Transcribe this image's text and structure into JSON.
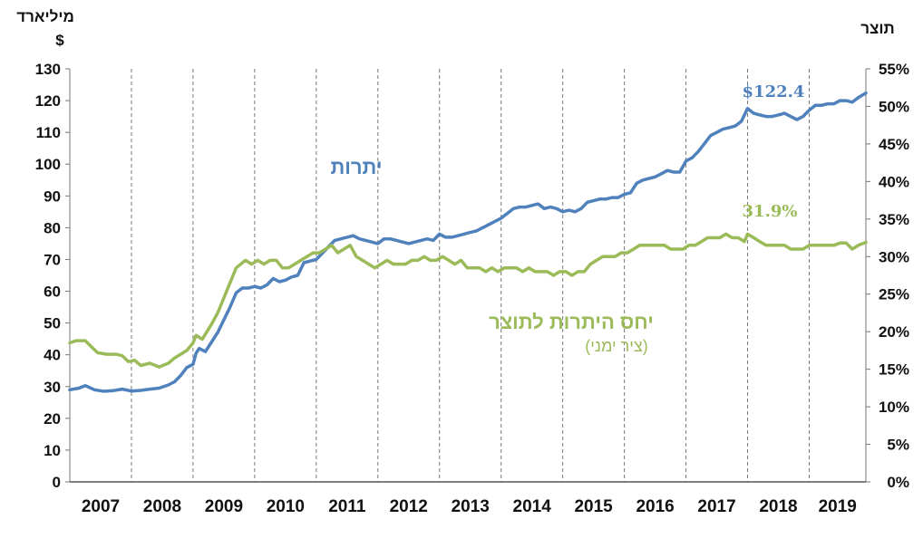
{
  "chart_data": {
    "type": "line",
    "left_axis": {
      "unit_line1": "מיליארד",
      "unit_line2": "$",
      "ylim": [
        0,
        130
      ],
      "ticks": [
        "0",
        "10",
        "20",
        "30",
        "40",
        "50",
        "60",
        "70",
        "80",
        "90",
        "100",
        "110",
        "120",
        "130"
      ]
    },
    "right_axis": {
      "unit": "תוצר",
      "ylim": [
        0,
        55
      ],
      "ticks": [
        "0%",
        "5%",
        "10%",
        "15%",
        "20%",
        "25%",
        "30%",
        "35%",
        "40%",
        "45%",
        "50%",
        "55%"
      ]
    },
    "x_axis": {
      "years": [
        "2007",
        "2008",
        "2009",
        "2010",
        "2011",
        "2012",
        "2013",
        "2014",
        "2015",
        "2016",
        "2017",
        "2018",
        "2019"
      ],
      "xlim": [
        2007.0,
        2019.92
      ]
    },
    "grid": "vertical dashed at year boundaries",
    "series": [
      {
        "name": "יתרות",
        "axis": "left",
        "color": "#4f81bd",
        "end_label": "$122.4",
        "points": [
          [
            2007.0,
            29
          ],
          [
            2007.15,
            29.5
          ],
          [
            2007.25,
            30.3
          ],
          [
            2007.4,
            29
          ],
          [
            2007.55,
            28.5
          ],
          [
            2007.7,
            28.7
          ],
          [
            2007.85,
            29.2
          ],
          [
            2008.0,
            28.6
          ],
          [
            2008.15,
            28.8
          ],
          [
            2008.3,
            29.2
          ],
          [
            2008.45,
            29.5
          ],
          [
            2008.6,
            30.5
          ],
          [
            2008.7,
            31.5
          ],
          [
            2008.8,
            33.5
          ],
          [
            2008.9,
            36
          ],
          [
            2009.0,
            37
          ],
          [
            2009.05,
            40.5
          ],
          [
            2009.1,
            42
          ],
          [
            2009.2,
            41
          ],
          [
            2009.3,
            44
          ],
          [
            2009.4,
            47
          ],
          [
            2009.5,
            51
          ],
          [
            2009.6,
            55
          ],
          [
            2009.7,
            59.5
          ],
          [
            2009.8,
            61
          ],
          [
            2009.9,
            61
          ],
          [
            2010.0,
            61.5
          ],
          [
            2010.1,
            61
          ],
          [
            2010.2,
            62
          ],
          [
            2010.3,
            64
          ],
          [
            2010.4,
            63
          ],
          [
            2010.5,
            63.5
          ],
          [
            2010.6,
            64.5
          ],
          [
            2010.7,
            65
          ],
          [
            2010.8,
            69
          ],
          [
            2010.9,
            69.5
          ],
          [
            2011.0,
            70
          ],
          [
            2011.1,
            72
          ],
          [
            2011.2,
            74
          ],
          [
            2011.3,
            76
          ],
          [
            2011.4,
            76.5
          ],
          [
            2011.5,
            77
          ],
          [
            2011.6,
            77.5
          ],
          [
            2011.7,
            76.5
          ],
          [
            2011.8,
            76
          ],
          [
            2011.9,
            75.5
          ],
          [
            2012.0,
            75
          ],
          [
            2012.1,
            76.5
          ],
          [
            2012.2,
            76.5
          ],
          [
            2012.3,
            76
          ],
          [
            2012.4,
            75.5
          ],
          [
            2012.5,
            75
          ],
          [
            2012.6,
            75.5
          ],
          [
            2012.7,
            76
          ],
          [
            2012.8,
            76.5
          ],
          [
            2012.9,
            76
          ],
          [
            2013.0,
            78
          ],
          [
            2013.1,
            77
          ],
          [
            2013.2,
            77
          ],
          [
            2013.3,
            77.5
          ],
          [
            2013.4,
            78
          ],
          [
            2013.5,
            78.5
          ],
          [
            2013.6,
            79
          ],
          [
            2013.7,
            80
          ],
          [
            2013.8,
            81
          ],
          [
            2013.9,
            82
          ],
          [
            2014.0,
            83
          ],
          [
            2014.1,
            84.5
          ],
          [
            2014.2,
            86
          ],
          [
            2014.3,
            86.5
          ],
          [
            2014.4,
            86.5
          ],
          [
            2014.5,
            87
          ],
          [
            2014.6,
            87.5
          ],
          [
            2014.7,
            86
          ],
          [
            2014.8,
            86.5
          ],
          [
            2014.9,
            86
          ],
          [
            2015.0,
            85
          ],
          [
            2015.1,
            85.5
          ],
          [
            2015.2,
            85
          ],
          [
            2015.3,
            86
          ],
          [
            2015.4,
            88
          ],
          [
            2015.5,
            88.5
          ],
          [
            2015.6,
            89
          ],
          [
            2015.7,
            89
          ],
          [
            2015.8,
            89.5
          ],
          [
            2015.9,
            89.5
          ],
          [
            2016.0,
            90.5
          ],
          [
            2016.1,
            91
          ],
          [
            2016.2,
            94
          ],
          [
            2016.3,
            95
          ],
          [
            2016.4,
            95.5
          ],
          [
            2016.5,
            96
          ],
          [
            2016.6,
            97
          ],
          [
            2016.7,
            98
          ],
          [
            2016.8,
            97.5
          ],
          [
            2016.9,
            97.5
          ],
          [
            2017.0,
            101
          ],
          [
            2017.1,
            102
          ],
          [
            2017.2,
            104
          ],
          [
            2017.3,
            106.5
          ],
          [
            2017.4,
            109
          ],
          [
            2017.5,
            110
          ],
          [
            2017.6,
            111
          ],
          [
            2017.7,
            111.5
          ],
          [
            2017.8,
            112
          ],
          [
            2017.9,
            113.5
          ],
          [
            2018.0,
            117.5
          ],
          [
            2018.1,
            116
          ],
          [
            2018.2,
            115.5
          ],
          [
            2018.3,
            115
          ],
          [
            2018.4,
            115
          ],
          [
            2018.5,
            115.5
          ],
          [
            2018.6,
            116
          ],
          [
            2018.7,
            115
          ],
          [
            2018.8,
            114
          ],
          [
            2018.9,
            115
          ],
          [
            2019.0,
            117
          ],
          [
            2019.1,
            118.5
          ],
          [
            2019.2,
            118.5
          ],
          [
            2019.3,
            119
          ],
          [
            2019.4,
            119
          ],
          [
            2019.5,
            120
          ],
          [
            2019.6,
            120
          ],
          [
            2019.7,
            119.5
          ],
          [
            2019.8,
            121
          ],
          [
            2019.92,
            122.4
          ]
        ]
      },
      {
        "name": "יחס היתרות לתוצר",
        "axis": "right",
        "color": "#9bbb59",
        "end_label": "31.9%",
        "points": [
          [
            2007.0,
            18.5
          ],
          [
            2007.1,
            18.8
          ],
          [
            2007.25,
            18.8
          ],
          [
            2007.35,
            18
          ],
          [
            2007.45,
            17.2
          ],
          [
            2007.6,
            17
          ],
          [
            2007.75,
            17
          ],
          [
            2007.85,
            16.8
          ],
          [
            2007.95,
            16
          ],
          [
            2008.05,
            16.2
          ],
          [
            2008.15,
            15.5
          ],
          [
            2008.3,
            15.8
          ],
          [
            2008.45,
            15.3
          ],
          [
            2008.6,
            15.8
          ],
          [
            2008.7,
            16.5
          ],
          [
            2008.8,
            17
          ],
          [
            2008.9,
            17.5
          ],
          [
            2009.0,
            18.5
          ],
          [
            2009.05,
            19.5
          ],
          [
            2009.15,
            19
          ],
          [
            2009.3,
            21
          ],
          [
            2009.4,
            22.5
          ],
          [
            2009.5,
            24.5
          ],
          [
            2009.6,
            26.5
          ],
          [
            2009.7,
            28.5
          ],
          [
            2009.85,
            29.5
          ],
          [
            2009.95,
            29
          ],
          [
            2010.05,
            29.5
          ],
          [
            2010.15,
            29
          ],
          [
            2010.25,
            29.5
          ],
          [
            2010.35,
            29.5
          ],
          [
            2010.45,
            28.5
          ],
          [
            2010.55,
            28.5
          ],
          [
            2010.65,
            29
          ],
          [
            2010.75,
            29.5
          ],
          [
            2010.85,
            30
          ],
          [
            2010.95,
            30.5
          ],
          [
            2011.05,
            30.5
          ],
          [
            2011.15,
            31
          ],
          [
            2011.25,
            31.5
          ],
          [
            2011.35,
            30.5
          ],
          [
            2011.45,
            31
          ],
          [
            2011.55,
            31.5
          ],
          [
            2011.65,
            30
          ],
          [
            2011.75,
            29.5
          ],
          [
            2011.85,
            29
          ],
          [
            2011.95,
            28.5
          ],
          [
            2012.05,
            29
          ],
          [
            2012.15,
            29.5
          ],
          [
            2012.25,
            29
          ],
          [
            2012.35,
            29
          ],
          [
            2012.45,
            29
          ],
          [
            2012.55,
            29.5
          ],
          [
            2012.65,
            29.5
          ],
          [
            2012.75,
            30
          ],
          [
            2012.85,
            29.5
          ],
          [
            2012.95,
            29.5
          ],
          [
            2013.05,
            30
          ],
          [
            2013.15,
            29.5
          ],
          [
            2013.25,
            29
          ],
          [
            2013.35,
            29.5
          ],
          [
            2013.45,
            28.5
          ],
          [
            2013.55,
            28.5
          ],
          [
            2013.65,
            28.5
          ],
          [
            2013.75,
            28
          ],
          [
            2013.85,
            28.5
          ],
          [
            2013.95,
            28
          ],
          [
            2014.05,
            28.5
          ],
          [
            2014.15,
            28.5
          ],
          [
            2014.25,
            28.5
          ],
          [
            2014.35,
            28
          ],
          [
            2014.45,
            28.5
          ],
          [
            2014.55,
            28
          ],
          [
            2014.65,
            28
          ],
          [
            2014.75,
            28
          ],
          [
            2014.85,
            27.5
          ],
          [
            2014.95,
            28
          ],
          [
            2015.05,
            28
          ],
          [
            2015.15,
            27.5
          ],
          [
            2015.25,
            28
          ],
          [
            2015.35,
            28
          ],
          [
            2015.45,
            29
          ],
          [
            2015.55,
            29.5
          ],
          [
            2015.65,
            30
          ],
          [
            2015.75,
            30
          ],
          [
            2015.85,
            30
          ],
          [
            2015.95,
            30.5
          ],
          [
            2016.05,
            30.5
          ],
          [
            2016.15,
            31
          ],
          [
            2016.25,
            31.5
          ],
          [
            2016.35,
            31.5
          ],
          [
            2016.45,
            31.5
          ],
          [
            2016.55,
            31.5
          ],
          [
            2016.65,
            31.5
          ],
          [
            2016.75,
            31
          ],
          [
            2016.85,
            31
          ],
          [
            2016.95,
            31
          ],
          [
            2017.05,
            31.5
          ],
          [
            2017.15,
            31.5
          ],
          [
            2017.25,
            32
          ],
          [
            2017.35,
            32.5
          ],
          [
            2017.45,
            32.5
          ],
          [
            2017.55,
            32.5
          ],
          [
            2017.65,
            33
          ],
          [
            2017.75,
            32.5
          ],
          [
            2017.85,
            32.5
          ],
          [
            2017.95,
            32
          ],
          [
            2018.0,
            33
          ],
          [
            2018.1,
            32.5
          ],
          [
            2018.2,
            32
          ],
          [
            2018.3,
            31.5
          ],
          [
            2018.4,
            31.5
          ],
          [
            2018.5,
            31.5
          ],
          [
            2018.6,
            31.5
          ],
          [
            2018.7,
            31
          ],
          [
            2018.8,
            31
          ],
          [
            2018.9,
            31
          ],
          [
            2019.0,
            31.5
          ],
          [
            2019.1,
            31.5
          ],
          [
            2019.2,
            31.5
          ],
          [
            2019.3,
            31.5
          ],
          [
            2019.4,
            31.5
          ],
          [
            2019.5,
            31.8
          ],
          [
            2019.6,
            31.8
          ],
          [
            2019.7,
            31
          ],
          [
            2019.8,
            31.5
          ],
          [
            2019.92,
            31.9
          ]
        ]
      }
    ],
    "annotations": [
      {
        "series": 0,
        "text": "יתרות"
      },
      {
        "series": 1,
        "text": "יחס היתרות לתוצר",
        "subtext": "(ציר ימני)"
      }
    ]
  }
}
